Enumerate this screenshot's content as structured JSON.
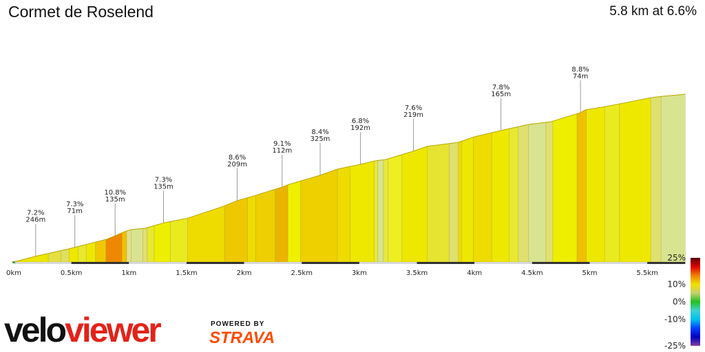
{
  "title": "Cormet de Roselend",
  "summary": "5.8 km at 6.6%",
  "logo": {
    "velo": "velo",
    "viewer": "viewer",
    "powered_by": "POWERED BY",
    "strava": "STRAVA"
  },
  "chart_data": {
    "type": "area",
    "xlabel": "",
    "ylabel": "",
    "x_ticks": [
      "0km",
      "0.5km",
      "1km",
      "1.5km",
      "2km",
      "2.5km",
      "3km",
      "3.5km",
      "4km",
      "4.5km",
      "5km",
      "5.5km"
    ],
    "x_tick_values": [
      0,
      0.5,
      1,
      1.5,
      2,
      2.5,
      3,
      3.5,
      4,
      4.5,
      5,
      5.5
    ],
    "xlim": [
      0,
      5.83
    ],
    "profile": [
      [
        0,
        0
      ],
      [
        0.19,
        13
      ],
      [
        0.48,
        30
      ],
      [
        0.81,
        52
      ],
      [
        0.96,
        69
      ],
      [
        1.02,
        74
      ],
      [
        1.14,
        77
      ],
      [
        1.3,
        89
      ],
      [
        1.51,
        100
      ],
      [
        1.82,
        127
      ],
      [
        1.94,
        140
      ],
      [
        2.1,
        152
      ],
      [
        2.33,
        171
      ],
      [
        2.39,
        177
      ],
      [
        2.66,
        198
      ],
      [
        2.81,
        212
      ],
      [
        3.01,
        223
      ],
      [
        3.14,
        231
      ],
      [
        3.23,
        234
      ],
      [
        3.47,
        253
      ],
      [
        3.59,
        264
      ],
      [
        3.86,
        273
      ],
      [
        4.0,
        286
      ],
      [
        4.23,
        300
      ],
      [
        4.47,
        314
      ],
      [
        4.66,
        320
      ],
      [
        4.92,
        341
      ],
      [
        4.96,
        347
      ],
      [
        5.14,
        355
      ],
      [
        5.26,
        361
      ],
      [
        5.53,
        375
      ],
      [
        5.62,
        378
      ],
      [
        5.83,
        383
      ]
    ],
    "segments": [
      [
        0,
        "#ece600"
      ],
      [
        0.3,
        "#e4e040"
      ],
      [
        0.41,
        "#e0e060"
      ],
      [
        0.48,
        "#eee800"
      ],
      [
        0.56,
        "#e8e830"
      ],
      [
        0.63,
        "#eee800"
      ],
      [
        0.71,
        "#f0c800"
      ],
      [
        0.8,
        "#ee8800"
      ],
      [
        0.94,
        "#f0c000"
      ],
      [
        0.98,
        "#e0e090"
      ],
      [
        1.02,
        "#d8e490"
      ],
      [
        1.12,
        "#e0e070"
      ],
      [
        1.16,
        "#e8e830"
      ],
      [
        1.22,
        "#eeee00"
      ],
      [
        1.36,
        "#eaea20"
      ],
      [
        1.51,
        "#eedc00"
      ],
      [
        1.83,
        "#eec800"
      ],
      [
        2.03,
        "#eedc00"
      ],
      [
        2.1,
        "#eed000"
      ],
      [
        2.27,
        "#eab400"
      ],
      [
        2.38,
        "#eef000"
      ],
      [
        2.49,
        "#eed000"
      ],
      [
        2.81,
        "#eedc00"
      ],
      [
        2.92,
        "#eee800"
      ],
      [
        3.13,
        "#e8e840"
      ],
      [
        3.16,
        "#d8e490"
      ],
      [
        3.21,
        "#e8e840"
      ],
      [
        3.25,
        "#eeee20"
      ],
      [
        3.37,
        "#eee800"
      ],
      [
        3.59,
        "#e6e430"
      ],
      [
        3.78,
        "#e0e070"
      ],
      [
        3.86,
        "#eedc00"
      ],
      [
        3.89,
        "#eee800"
      ],
      [
        3.99,
        "#eedc00"
      ],
      [
        4.15,
        "#eee800"
      ],
      [
        4.3,
        "#e8e830"
      ],
      [
        4.38,
        "#e0e070"
      ],
      [
        4.47,
        "#d8e490"
      ],
      [
        4.62,
        "#e0e070"
      ],
      [
        4.68,
        "#eeee00"
      ],
      [
        4.89,
        "#eec000"
      ],
      [
        4.97,
        "#eee800"
      ],
      [
        5.13,
        "#eaea20"
      ],
      [
        5.26,
        "#eee800"
      ],
      [
        5.53,
        "#e0e070"
      ],
      [
        5.62,
        "#d8e490"
      ]
    ],
    "annotations": [
      {
        "km": 0.19,
        "grade": "7.2%",
        "length": "246m"
      },
      {
        "km": 0.53,
        "grade": "7.3%",
        "length": "71m"
      },
      {
        "km": 0.88,
        "grade": "10.8%",
        "length": "135m"
      },
      {
        "km": 1.3,
        "grade": "7.3%",
        "length": "135m"
      },
      {
        "km": 1.94,
        "grade": "8.6%",
        "length": "209m"
      },
      {
        "km": 2.33,
        "grade": "9.1%",
        "length": "112m"
      },
      {
        "km": 2.66,
        "grade": "8.4%",
        "length": "325m"
      },
      {
        "km": 3.01,
        "grade": "6.8%",
        "length": "192m"
      },
      {
        "km": 3.47,
        "grade": "7.6%",
        "length": "219m"
      },
      {
        "km": 4.23,
        "grade": "7.8%",
        "length": "165m"
      },
      {
        "km": 4.92,
        "grade": "8.8%",
        "length": "74m"
      }
    ],
    "legend": {
      "labels": [
        "25%",
        "10%",
        "0%",
        "-10%",
        "-25%"
      ],
      "values": [
        25,
        10,
        0,
        -10,
        -25
      ],
      "colors": [
        "#5a0000",
        "#e00000",
        "#f08000",
        "#f0e000",
        "#c8d070",
        "#20c020",
        "#40d0d0",
        "#00c0f0",
        "#0040ff",
        "#0000c0",
        "#8040a0"
      ]
    }
  }
}
